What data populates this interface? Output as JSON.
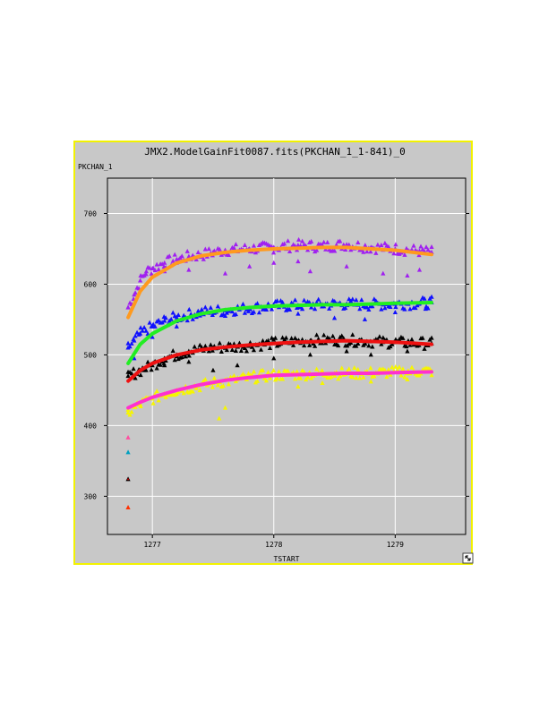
{
  "window": {
    "border_color": "#f2f200",
    "background_color": "#c8c8c8",
    "corner_icon": "resize-arrow-icon"
  },
  "chart_data": {
    "type": "scatter",
    "title": "JMX2.ModelGainFit0087.fits(PKCHAN_1_1-841)_0",
    "ylabel": "PKCHAN_1",
    "xlabel": "TSTART",
    "xlim": [
      1276.63,
      1279.58
    ],
    "ylim": [
      246,
      750
    ],
    "xticks": [
      1277,
      1278,
      1279
    ],
    "yticks": [
      300,
      400,
      500,
      600,
      700
    ],
    "grid": true,
    "x_range_data": [
      1276.8,
      1279.3
    ],
    "series": [
      {
        "color": "#a020f0",
        "fit_color": "#ff9a1e",
        "points": [
          [
            1276.8,
            567
          ],
          [
            1276.85,
            585
          ],
          [
            1276.9,
            605
          ],
          [
            1276.95,
            618
          ],
          [
            1277.0,
            622
          ],
          [
            1277.1,
            630
          ],
          [
            1277.2,
            635
          ],
          [
            1277.3,
            639
          ],
          [
            1277.4,
            641
          ],
          [
            1277.5,
            645
          ],
          [
            1277.6,
            648
          ],
          [
            1277.8,
            650
          ],
          [
            1278.0,
            652
          ],
          [
            1278.2,
            655
          ],
          [
            1278.4,
            653
          ],
          [
            1278.6,
            656
          ],
          [
            1278.8,
            652
          ],
          [
            1279.0,
            650
          ],
          [
            1279.2,
            647
          ],
          [
            1279.3,
            645
          ]
        ],
        "scatter_points": [
          [
            1277.0,
            612
          ],
          [
            1277.1,
            618
          ],
          [
            1277.3,
            620
          ],
          [
            1277.6,
            615
          ],
          [
            1277.8,
            625
          ],
          [
            1278.0,
            630
          ],
          [
            1278.2,
            632
          ],
          [
            1278.3,
            618
          ],
          [
            1278.6,
            625
          ],
          [
            1278.9,
            615
          ],
          [
            1279.1,
            612
          ],
          [
            1279.2,
            620
          ]
        ],
        "fit": [
          [
            1276.8,
            553
          ],
          [
            1276.9,
            590
          ],
          [
            1277.0,
            610
          ],
          [
            1277.2,
            630
          ],
          [
            1277.4,
            640
          ],
          [
            1277.6,
            645
          ],
          [
            1277.8,
            648
          ],
          [
            1278.0,
            650
          ],
          [
            1278.2,
            651
          ],
          [
            1278.4,
            652
          ],
          [
            1278.6,
            652
          ],
          [
            1278.8,
            650
          ],
          [
            1279.0,
            648
          ],
          [
            1279.3,
            642
          ]
        ]
      },
      {
        "color": "#1010ff",
        "fit_color": "#22ee22",
        "points": [
          [
            1276.8,
            510
          ],
          [
            1276.85,
            520
          ],
          [
            1276.9,
            530
          ],
          [
            1277.0,
            540
          ],
          [
            1277.1,
            548
          ],
          [
            1277.2,
            553
          ],
          [
            1277.4,
            560
          ],
          [
            1277.6,
            563
          ],
          [
            1277.8,
            566
          ],
          [
            1278.0,
            569
          ],
          [
            1278.2,
            570
          ],
          [
            1278.4,
            571
          ],
          [
            1278.6,
            572
          ],
          [
            1278.8,
            571
          ],
          [
            1279.0,
            572
          ],
          [
            1279.2,
            573
          ],
          [
            1279.3,
            574
          ]
        ],
        "scatter_points": [
          [
            1276.85,
            495
          ],
          [
            1277.0,
            525
          ],
          [
            1277.2,
            540
          ],
          [
            1277.6,
            555
          ],
          [
            1278.2,
            558
          ],
          [
            1278.5,
            552
          ],
          [
            1278.75,
            550
          ],
          [
            1279.0,
            560
          ],
          [
            1279.25,
            565
          ]
        ],
        "fit": [
          [
            1276.8,
            488
          ],
          [
            1276.9,
            515
          ],
          [
            1277.0,
            530
          ],
          [
            1277.2,
            548
          ],
          [
            1277.4,
            558
          ],
          [
            1277.6,
            564
          ],
          [
            1277.8,
            567
          ],
          [
            1278.0,
            569
          ],
          [
            1278.2,
            570
          ],
          [
            1278.4,
            571
          ],
          [
            1278.6,
            571
          ],
          [
            1278.8,
            572
          ],
          [
            1279.0,
            573
          ],
          [
            1279.3,
            574
          ]
        ]
      },
      {
        "color": "#000000",
        "fit_color": "#ee1111",
        "points": [
          [
            1276.8,
            470
          ],
          [
            1276.9,
            478
          ],
          [
            1277.0,
            485
          ],
          [
            1277.1,
            495
          ],
          [
            1277.2,
            500
          ],
          [
            1277.3,
            505
          ],
          [
            1277.5,
            510
          ],
          [
            1277.7,
            512
          ],
          [
            1277.9,
            515
          ],
          [
            1278.1,
            518
          ],
          [
            1278.3,
            520
          ],
          [
            1278.5,
            521
          ],
          [
            1278.7,
            520
          ],
          [
            1278.9,
            518
          ],
          [
            1279.1,
            517
          ],
          [
            1279.3,
            516
          ]
        ],
        "scatter_points": [
          [
            1277.1,
            485
          ],
          [
            1277.3,
            490
          ],
          [
            1277.5,
            478
          ],
          [
            1277.7,
            485
          ],
          [
            1278.0,
            495
          ],
          [
            1278.3,
            500
          ],
          [
            1278.6,
            505
          ],
          [
            1278.8,
            500
          ],
          [
            1279.1,
            505
          ]
        ],
        "fit": [
          [
            1276.8,
            463
          ],
          [
            1276.9,
            478
          ],
          [
            1277.0,
            488
          ],
          [
            1277.2,
            500
          ],
          [
            1277.4,
            507
          ],
          [
            1277.6,
            511
          ],
          [
            1277.8,
            514
          ],
          [
            1278.0,
            516
          ],
          [
            1278.2,
            518
          ],
          [
            1278.4,
            519
          ],
          [
            1278.6,
            520
          ],
          [
            1278.8,
            519
          ],
          [
            1279.0,
            518
          ],
          [
            1279.3,
            515
          ]
        ]
      },
      {
        "color": "#f6f600",
        "fit_color": "#ff30d0",
        "points": [
          [
            1276.8,
            418
          ],
          [
            1276.9,
            430
          ],
          [
            1277.0,
            438
          ],
          [
            1277.1,
            445
          ],
          [
            1277.2,
            450
          ],
          [
            1277.35,
            455
          ],
          [
            1277.5,
            460
          ],
          [
            1277.7,
            465
          ],
          [
            1277.9,
            470
          ],
          [
            1278.1,
            472
          ],
          [
            1278.3,
            473
          ],
          [
            1278.5,
            474
          ],
          [
            1278.7,
            474
          ],
          [
            1278.9,
            475
          ],
          [
            1279.1,
            476
          ],
          [
            1279.3,
            477
          ]
        ],
        "scatter_points": [
          [
            1277.55,
            410
          ],
          [
            1277.6,
            425
          ],
          [
            1278.2,
            455
          ],
          [
            1278.4,
            460
          ],
          [
            1278.8,
            462
          ],
          [
            1279.1,
            465
          ]
        ],
        "fit": [
          [
            1276.8,
            425
          ],
          [
            1276.9,
            433
          ],
          [
            1277.0,
            440
          ],
          [
            1277.2,
            450
          ],
          [
            1277.4,
            458
          ],
          [
            1277.6,
            464
          ],
          [
            1277.8,
            468
          ],
          [
            1278.0,
            471
          ],
          [
            1278.2,
            472
          ],
          [
            1278.4,
            473
          ],
          [
            1278.6,
            474
          ],
          [
            1278.8,
            474
          ],
          [
            1279.0,
            475
          ],
          [
            1279.3,
            476
          ]
        ]
      }
    ],
    "outliers": [
      {
        "x": 1276.8,
        "y": 383,
        "color": "#ff4fa0"
      },
      {
        "x": 1276.8,
        "y": 362,
        "color": "#00a0c0"
      },
      {
        "x": 1276.8,
        "y": 324,
        "color": "#000000",
        "inner": "#cc0000"
      },
      {
        "x": 1276.8,
        "y": 284,
        "color": "#ff3000"
      }
    ]
  }
}
